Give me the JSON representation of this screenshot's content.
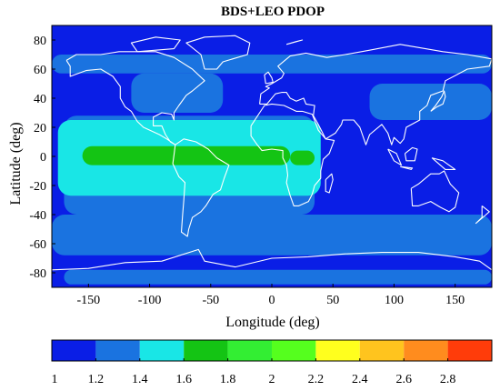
{
  "chart_data": {
    "type": "heatmap",
    "title": "BDS+LEO PDOP",
    "xlabel": "Longitude (deg)",
    "ylabel": "Latitude (deg)",
    "xlim": [
      -180,
      180
    ],
    "ylim": [
      -90,
      90
    ],
    "xticks": [
      "-150",
      "-100",
      "-50",
      "0",
      "50",
      "100",
      "150"
    ],
    "xtick_values": [
      -150,
      -100,
      -50,
      0,
      50,
      100,
      150
    ],
    "yticks": [
      "80",
      "60",
      "40",
      "20",
      "0",
      "-20",
      "-40",
      "-60",
      "-80"
    ],
    "ytick_values": [
      80,
      60,
      40,
      20,
      0,
      -20,
      -40,
      -60,
      -80
    ],
    "colorbar": {
      "labels": [
        "1",
        "1.2",
        "1.4",
        "1.6",
        "1.8",
        "2",
        "2.2",
        "2.4",
        "2.6",
        "2.8"
      ],
      "bounds": [
        1.0,
        1.2,
        1.4,
        1.6,
        1.8,
        2.0,
        2.2,
        2.4,
        2.6,
        2.8,
        3.0
      ],
      "colors": [
        "#0a1ee6",
        "#1a73e0",
        "#19e6e6",
        "#14c414",
        "#33ee33",
        "#55ff1e",
        "#ffff1e",
        "#ffc41e",
        "#ff8c1e",
        "#ff3c0a"
      ]
    },
    "regions": [
      {
        "level": 1.2,
        "lon": [
          -115,
          -40
        ],
        "lat": [
          30,
          57
        ]
      },
      {
        "level": 1.2,
        "lon": [
          -180,
          180
        ],
        "lat": [
          -68,
          -40
        ]
      },
      {
        "level": 1.2,
        "lon": [
          -180,
          180
        ],
        "lat": [
          57,
          70
        ]
      },
      {
        "level": 1.2,
        "lon": [
          80,
          180
        ],
        "lat": [
          25,
          50
        ]
      },
      {
        "level": 1.2,
        "lon": [
          -170,
          35
        ],
        "lat": [
          -40,
          28
        ]
      },
      {
        "level": 1.2,
        "lon": [
          -170,
          180
        ],
        "lat": [
          -88,
          -78
        ]
      },
      {
        "level": 1.4,
        "lon": [
          -175,
          40
        ],
        "lat": [
          -27,
          25
        ]
      },
      {
        "level": 1.6,
        "lon": [
          -155,
          15
        ],
        "lat": [
          -6,
          7
        ]
      },
      {
        "level": 1.6,
        "lon": [
          15,
          35
        ],
        "lat": [
          -6,
          4
        ]
      }
    ],
    "background_level": 1.0
  }
}
